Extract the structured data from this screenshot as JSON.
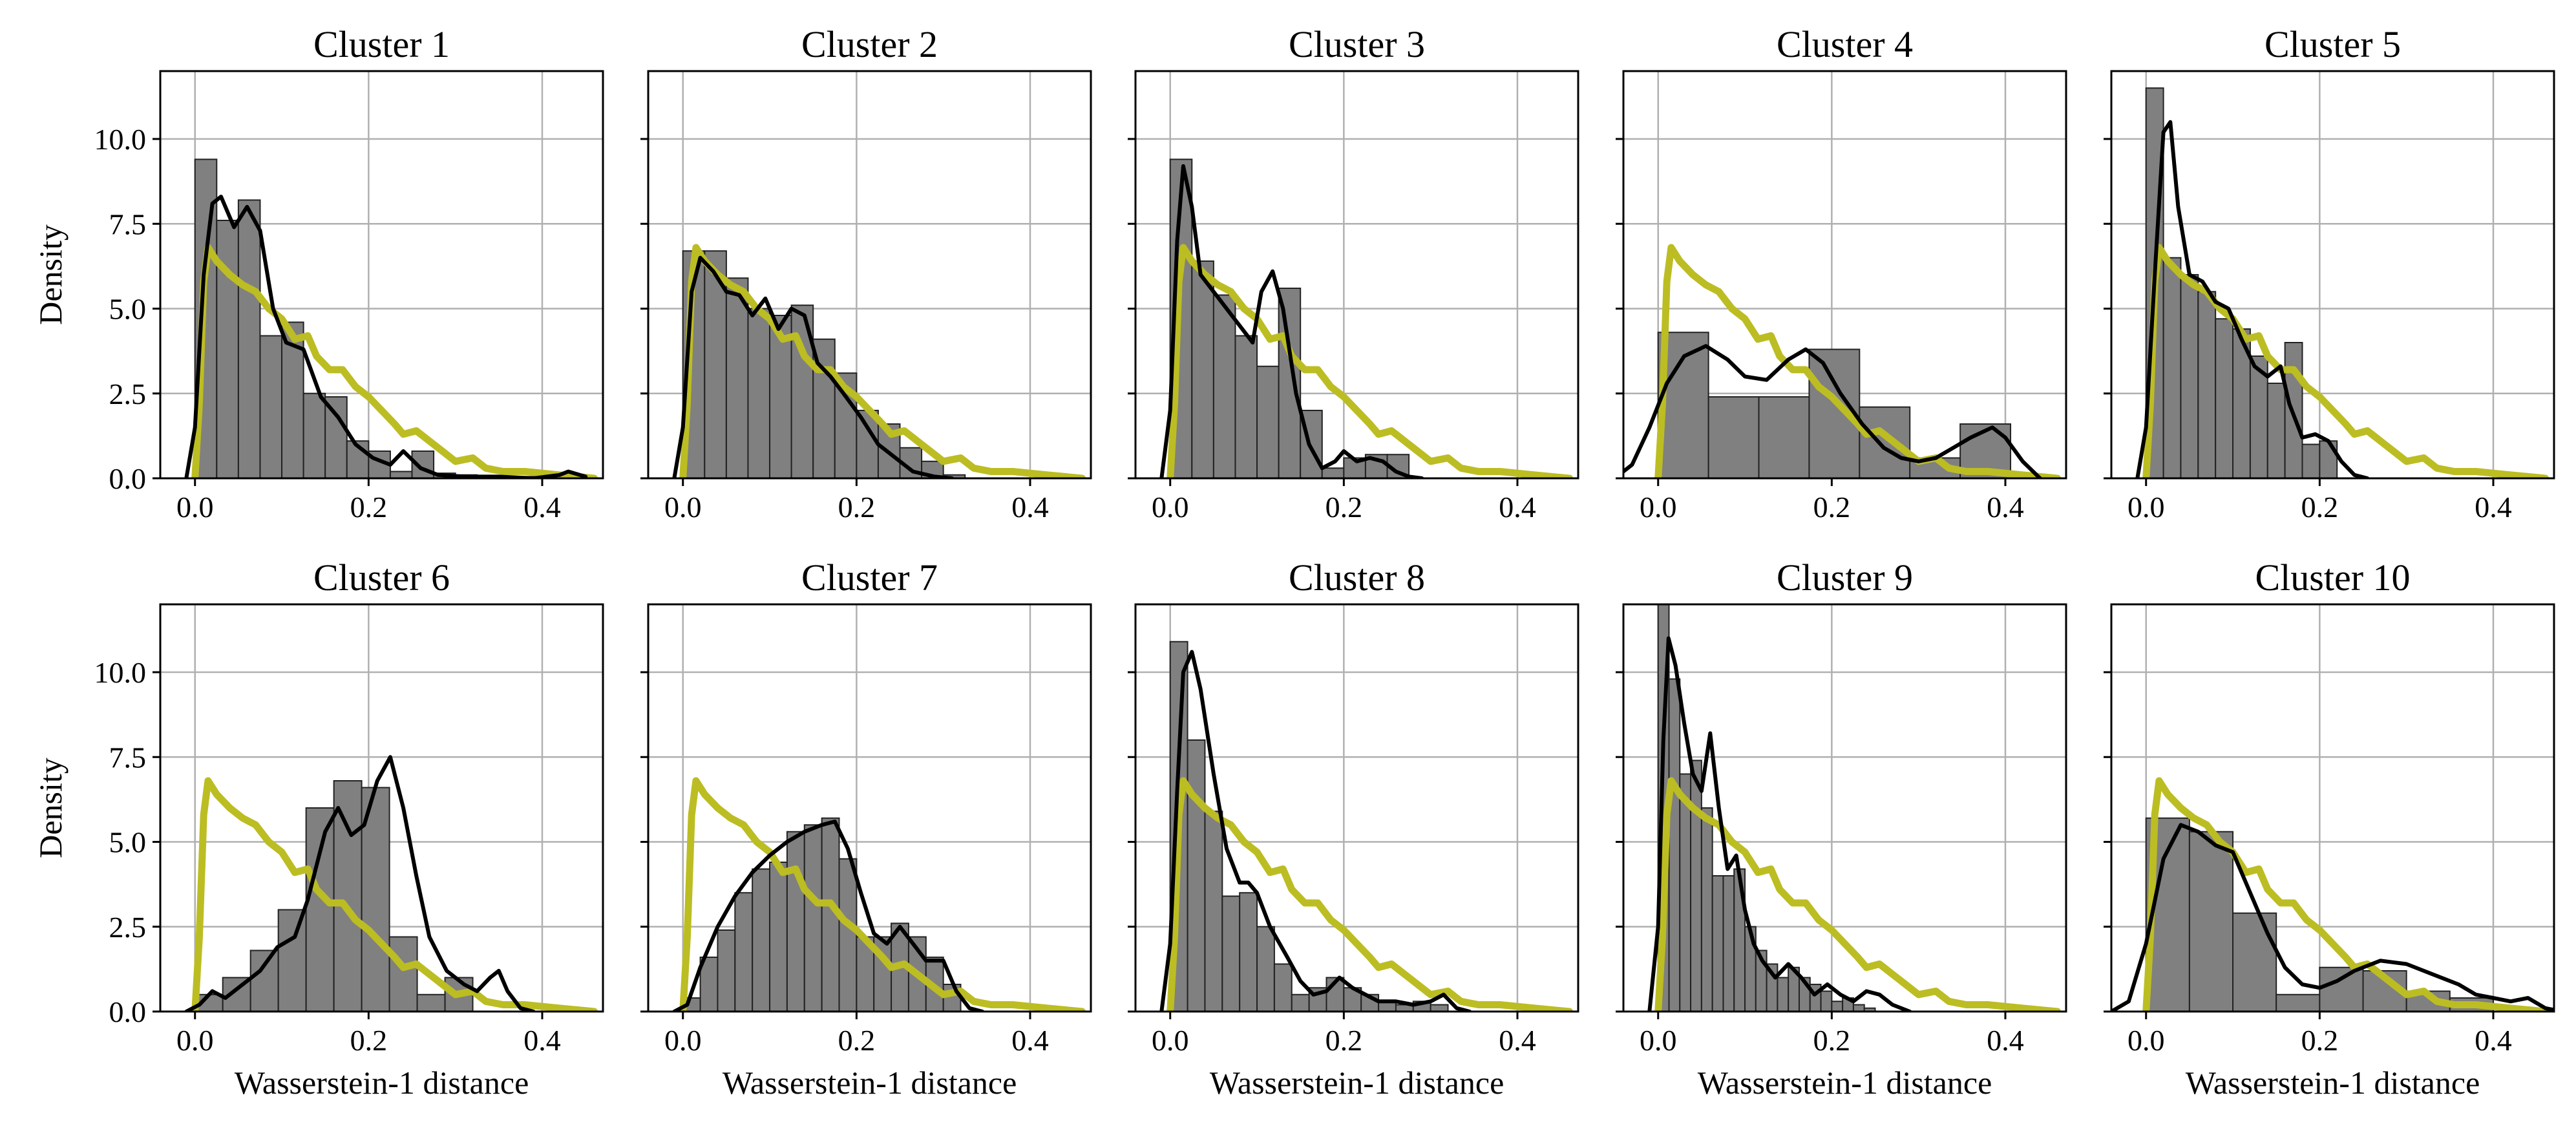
{
  "figure": {
    "ylabel": "Density",
    "xlabel": "Wasserstein-1 distance"
  },
  "chart_data": {
    "type": "histogram+kde",
    "layout": "2 rows x 5 columns, shared y-axis",
    "xlim": [
      -0.04,
      0.47
    ],
    "ylim": [
      0,
      12
    ],
    "yticks": [
      0.0,
      2.5,
      5.0,
      7.5,
      10.0
    ],
    "ytick_labels": [
      "0.0",
      "2.5",
      "5.0",
      "7.5",
      "10.0"
    ],
    "xticks": [
      0.0,
      0.2,
      0.4
    ],
    "xtick_labels": [
      "0.0",
      "0.2",
      "0.4"
    ],
    "grid": true,
    "colors": {
      "histogram_fill": "#808080",
      "histogram_edge": "#222222",
      "cluster_kde": "#000000",
      "reference_kde": "#bcbd22",
      "grid": "#b0b0b0"
    },
    "reference_kde": [
      [
        0.0,
        0.0
      ],
      [
        0.005,
        2.2
      ],
      [
        0.01,
        5.8
      ],
      [
        0.015,
        6.8
      ],
      [
        0.025,
        6.4
      ],
      [
        0.04,
        6.0
      ],
      [
        0.055,
        5.7
      ],
      [
        0.07,
        5.5
      ],
      [
        0.085,
        5.0
      ],
      [
        0.1,
        4.7
      ],
      [
        0.115,
        4.1
      ],
      [
        0.13,
        4.2
      ],
      [
        0.14,
        3.6
      ],
      [
        0.155,
        3.2
      ],
      [
        0.17,
        3.2
      ],
      [
        0.185,
        2.7
      ],
      [
        0.2,
        2.4
      ],
      [
        0.215,
        2.0
      ],
      [
        0.23,
        1.6
      ],
      [
        0.24,
        1.3
      ],
      [
        0.255,
        1.4
      ],
      [
        0.27,
        1.1
      ],
      [
        0.285,
        0.8
      ],
      [
        0.3,
        0.5
      ],
      [
        0.32,
        0.6
      ],
      [
        0.335,
        0.3
      ],
      [
        0.355,
        0.2
      ],
      [
        0.38,
        0.2
      ],
      [
        0.42,
        0.1
      ],
      [
        0.46,
        0.0
      ]
    ],
    "panels": [
      {
        "title": "Cluster 1",
        "bin_start": 0.0,
        "bin_width": 0.025,
        "hist": [
          9.4,
          7.6,
          8.2,
          4.2,
          4.6,
          2.5,
          2.4,
          1.1,
          0.8,
          0.2,
          0.8,
          0.15,
          0.1,
          0.0,
          0.05,
          0.05,
          0.05,
          0.1
        ],
        "kde": [
          [
            -0.01,
            0.0
          ],
          [
            0.0,
            1.5
          ],
          [
            0.01,
            6.0
          ],
          [
            0.02,
            8.1
          ],
          [
            0.03,
            8.3
          ],
          [
            0.045,
            7.4
          ],
          [
            0.06,
            8.0
          ],
          [
            0.075,
            7.3
          ],
          [
            0.09,
            5.0
          ],
          [
            0.105,
            4.0
          ],
          [
            0.125,
            3.8
          ],
          [
            0.145,
            2.4
          ],
          [
            0.165,
            1.8
          ],
          [
            0.185,
            1.0
          ],
          [
            0.205,
            0.6
          ],
          [
            0.225,
            0.4
          ],
          [
            0.24,
            0.8
          ],
          [
            0.26,
            0.3
          ],
          [
            0.28,
            0.1
          ],
          [
            0.31,
            0.05
          ],
          [
            0.35,
            0.05
          ],
          [
            0.39,
            0.0
          ],
          [
            0.42,
            0.1
          ],
          [
            0.43,
            0.2
          ],
          [
            0.45,
            0.05
          ]
        ]
      },
      {
        "title": "Cluster 2",
        "bin_start": 0.0,
        "bin_width": 0.025,
        "hist": [
          6.7,
          6.7,
          5.9,
          5.0,
          4.8,
          5.1,
          4.1,
          3.1,
          2.0,
          1.6,
          0.9,
          0.5,
          0.1
        ],
        "kde": [
          [
            -0.01,
            0.0
          ],
          [
            0.0,
            1.5
          ],
          [
            0.01,
            5.5
          ],
          [
            0.02,
            6.5
          ],
          [
            0.035,
            6.1
          ],
          [
            0.05,
            5.5
          ],
          [
            0.065,
            5.4
          ],
          [
            0.08,
            4.8
          ],
          [
            0.095,
            5.3
          ],
          [
            0.11,
            4.4
          ],
          [
            0.125,
            5.0
          ],
          [
            0.14,
            4.8
          ],
          [
            0.155,
            3.4
          ],
          [
            0.17,
            3.0
          ],
          [
            0.185,
            2.5
          ],
          [
            0.205,
            1.8
          ],
          [
            0.225,
            1.0
          ],
          [
            0.245,
            0.6
          ],
          [
            0.265,
            0.2
          ],
          [
            0.29,
            0.05
          ],
          [
            0.31,
            0.0
          ]
        ]
      },
      {
        "title": "Cluster 3",
        "bin_start": 0.0,
        "bin_width": 0.025,
        "hist": [
          9.4,
          6.4,
          5.4,
          4.2,
          3.3,
          5.6,
          2.0,
          0.3,
          0.6,
          0.7,
          0.7
        ],
        "kde": [
          [
            -0.01,
            0.0
          ],
          [
            0.0,
            2.0
          ],
          [
            0.008,
            7.0
          ],
          [
            0.015,
            9.2
          ],
          [
            0.025,
            8.0
          ],
          [
            0.035,
            6.0
          ],
          [
            0.05,
            5.5
          ],
          [
            0.065,
            5.0
          ],
          [
            0.08,
            4.5
          ],
          [
            0.095,
            4.0
          ],
          [
            0.105,
            5.5
          ],
          [
            0.118,
            6.1
          ],
          [
            0.13,
            5.0
          ],
          [
            0.145,
            2.5
          ],
          [
            0.16,
            1.0
          ],
          [
            0.175,
            0.3
          ],
          [
            0.19,
            0.5
          ],
          [
            0.2,
            0.8
          ],
          [
            0.215,
            0.5
          ],
          [
            0.23,
            0.6
          ],
          [
            0.245,
            0.5
          ],
          [
            0.26,
            0.2
          ],
          [
            0.275,
            0.05
          ],
          [
            0.29,
            0.0
          ]
        ]
      },
      {
        "title": "Cluster 4",
        "bin_start": 0.0,
        "bin_width": 0.058,
        "hist": [
          4.3,
          2.4,
          2.4,
          3.8,
          2.1,
          0.6,
          1.6
        ],
        "kde": [
          [
            -0.05,
            0.0
          ],
          [
            -0.03,
            0.4
          ],
          [
            -0.01,
            1.5
          ],
          [
            0.01,
            2.8
          ],
          [
            0.03,
            3.6
          ],
          [
            0.055,
            3.9
          ],
          [
            0.08,
            3.5
          ],
          [
            0.1,
            3.0
          ],
          [
            0.125,
            2.9
          ],
          [
            0.15,
            3.5
          ],
          [
            0.17,
            3.8
          ],
          [
            0.19,
            3.4
          ],
          [
            0.21,
            2.5
          ],
          [
            0.235,
            1.6
          ],
          [
            0.26,
            0.9
          ],
          [
            0.28,
            0.6
          ],
          [
            0.3,
            0.5
          ],
          [
            0.32,
            0.6
          ],
          [
            0.34,
            0.9
          ],
          [
            0.36,
            1.2
          ],
          [
            0.385,
            1.5
          ],
          [
            0.4,
            1.2
          ],
          [
            0.42,
            0.5
          ],
          [
            0.44,
            0.0
          ]
        ]
      },
      {
        "title": "Cluster 5",
        "bin_start": 0.0,
        "bin_width": 0.02,
        "hist": [
          11.5,
          6.5,
          6.0,
          5.5,
          4.7,
          4.4,
          3.6,
          2.8,
          4.0,
          1.0,
          1.1
        ],
        "kde": [
          [
            -0.01,
            0.0
          ],
          [
            0.0,
            1.5
          ],
          [
            0.01,
            6.0
          ],
          [
            0.02,
            10.2
          ],
          [
            0.028,
            10.5
          ],
          [
            0.037,
            8.0
          ],
          [
            0.05,
            6.0
          ],
          [
            0.065,
            5.8
          ],
          [
            0.08,
            5.2
          ],
          [
            0.095,
            5.0
          ],
          [
            0.11,
            4.1
          ],
          [
            0.125,
            3.3
          ],
          [
            0.14,
            3.0
          ],
          [
            0.155,
            3.3
          ],
          [
            0.165,
            2.2
          ],
          [
            0.18,
            1.2
          ],
          [
            0.195,
            1.3
          ],
          [
            0.21,
            1.1
          ],
          [
            0.225,
            0.5
          ],
          [
            0.24,
            0.1
          ],
          [
            0.255,
            0.0
          ]
        ]
      },
      {
        "title": "Cluster 6",
        "bin_start": 0.0,
        "bin_width": 0.032,
        "hist": [
          0.5,
          1.0,
          1.8,
          3.0,
          6.0,
          6.8,
          6.6,
          2.2,
          0.5,
          1.0
        ],
        "kde": [
          [
            -0.01,
            0.0
          ],
          [
            0.005,
            0.2
          ],
          [
            0.02,
            0.6
          ],
          [
            0.035,
            0.4
          ],
          [
            0.055,
            0.8
          ],
          [
            0.075,
            1.2
          ],
          [
            0.095,
            1.9
          ],
          [
            0.115,
            2.2
          ],
          [
            0.13,
            3.3
          ],
          [
            0.15,
            5.3
          ],
          [
            0.165,
            6.0
          ],
          [
            0.18,
            5.2
          ],
          [
            0.195,
            5.5
          ],
          [
            0.21,
            6.8
          ],
          [
            0.225,
            7.5
          ],
          [
            0.24,
            6.0
          ],
          [
            0.255,
            4.0
          ],
          [
            0.27,
            2.2
          ],
          [
            0.29,
            1.2
          ],
          [
            0.31,
            0.8
          ],
          [
            0.325,
            0.6
          ],
          [
            0.34,
            1.0
          ],
          [
            0.35,
            1.2
          ],
          [
            0.36,
            0.6
          ],
          [
            0.375,
            0.1
          ],
          [
            0.39,
            0.0
          ]
        ]
      },
      {
        "title": "Cluster 7",
        "bin_start": 0.0,
        "bin_width": 0.02,
        "hist": [
          0.4,
          1.6,
          2.4,
          3.5,
          4.2,
          4.4,
          5.3,
          5.5,
          5.7,
          4.5,
          2.2,
          2.2,
          2.6,
          2.2,
          1.6,
          0.8
        ],
        "kde": [
          [
            -0.01,
            0.0
          ],
          [
            0.005,
            0.2
          ],
          [
            0.02,
            1.3
          ],
          [
            0.04,
            2.5
          ],
          [
            0.06,
            3.4
          ],
          [
            0.08,
            4.1
          ],
          [
            0.1,
            4.6
          ],
          [
            0.12,
            5.0
          ],
          [
            0.14,
            5.3
          ],
          [
            0.16,
            5.5
          ],
          [
            0.175,
            5.6
          ],
          [
            0.19,
            4.8
          ],
          [
            0.205,
            3.5
          ],
          [
            0.22,
            2.3
          ],
          [
            0.235,
            2.0
          ],
          [
            0.25,
            2.5
          ],
          [
            0.265,
            2.0
          ],
          [
            0.28,
            1.5
          ],
          [
            0.3,
            1.5
          ],
          [
            0.315,
            0.6
          ],
          [
            0.33,
            0.1
          ],
          [
            0.345,
            0.0
          ]
        ]
      },
      {
        "title": "Cluster 8",
        "bin_start": 0.0,
        "bin_width": 0.02,
        "hist": [
          10.9,
          8.0,
          5.9,
          3.4,
          3.5,
          2.5,
          1.4,
          0.5,
          0.7,
          1.0,
          0.7,
          0.5,
          0.3,
          0.2,
          0.3,
          0.2
        ],
        "kde": [
          [
            -0.01,
            0.0
          ],
          [
            0.0,
            2.0
          ],
          [
            0.008,
            6.5
          ],
          [
            0.015,
            10.0
          ],
          [
            0.025,
            10.6
          ],
          [
            0.035,
            9.5
          ],
          [
            0.05,
            7.0
          ],
          [
            0.065,
            4.8
          ],
          [
            0.08,
            3.8
          ],
          [
            0.09,
            3.8
          ],
          [
            0.1,
            3.5
          ],
          [
            0.115,
            2.5
          ],
          [
            0.135,
            1.6
          ],
          [
            0.15,
            0.9
          ],
          [
            0.165,
            0.5
          ],
          [
            0.18,
            0.6
          ],
          [
            0.195,
            1.0
          ],
          [
            0.21,
            0.7
          ],
          [
            0.225,
            0.5
          ],
          [
            0.24,
            0.3
          ],
          [
            0.26,
            0.3
          ],
          [
            0.28,
            0.2
          ],
          [
            0.3,
            0.3
          ],
          [
            0.315,
            0.5
          ],
          [
            0.33,
            0.1
          ],
          [
            0.345,
            0.0
          ]
        ]
      },
      {
        "title": "Cluster 9",
        "bin_start": 0.0,
        "bin_width": 0.0125,
        "hist": [
          12.0,
          9.8,
          7.0,
          7.4,
          6.0,
          4.0,
          4.0,
          4.2,
          2.5,
          1.8,
          1.4,
          1.0,
          1.3,
          1.0,
          0.8,
          0.6,
          0.3,
          0.4,
          0.2,
          0.1
        ],
        "kde": [
          [
            -0.01,
            0.0
          ],
          [
            0.0,
            2.5
          ],
          [
            0.006,
            8.0
          ],
          [
            0.012,
            11.0
          ],
          [
            0.02,
            10.2
          ],
          [
            0.03,
            8.5
          ],
          [
            0.04,
            7.0
          ],
          [
            0.05,
            6.5
          ],
          [
            0.06,
            8.2
          ],
          [
            0.07,
            6.0
          ],
          [
            0.08,
            4.2
          ],
          [
            0.09,
            4.6
          ],
          [
            0.1,
            3.0
          ],
          [
            0.11,
            2.0
          ],
          [
            0.12,
            1.5
          ],
          [
            0.135,
            1.0
          ],
          [
            0.15,
            1.4
          ],
          [
            0.165,
            1.0
          ],
          [
            0.18,
            0.5
          ],
          [
            0.195,
            0.8
          ],
          [
            0.21,
            0.5
          ],
          [
            0.225,
            0.3
          ],
          [
            0.24,
            0.6
          ],
          [
            0.255,
            0.5
          ],
          [
            0.27,
            0.2
          ],
          [
            0.29,
            0.0
          ]
        ]
      },
      {
        "title": "Cluster 10",
        "bin_start": 0.0,
        "bin_width": 0.05,
        "hist": [
          5.7,
          5.3,
          2.9,
          0.5,
          1.3,
          1.2,
          0.6,
          0.4
        ],
        "kde": [
          [
            -0.04,
            0.0
          ],
          [
            -0.02,
            0.3
          ],
          [
            0.0,
            2.0
          ],
          [
            0.02,
            4.5
          ],
          [
            0.04,
            5.5
          ],
          [
            0.06,
            5.3
          ],
          [
            0.08,
            4.9
          ],
          [
            0.1,
            4.7
          ],
          [
            0.12,
            3.5
          ],
          [
            0.14,
            2.3
          ],
          [
            0.16,
            1.3
          ],
          [
            0.18,
            0.8
          ],
          [
            0.2,
            0.7
          ],
          [
            0.22,
            0.9
          ],
          [
            0.24,
            1.2
          ],
          [
            0.27,
            1.5
          ],
          [
            0.3,
            1.4
          ],
          [
            0.33,
            1.1
          ],
          [
            0.36,
            0.8
          ],
          [
            0.38,
            0.5
          ],
          [
            0.4,
            0.4
          ],
          [
            0.42,
            0.3
          ],
          [
            0.44,
            0.4
          ],
          [
            0.46,
            0.1
          ],
          [
            0.48,
            0.0
          ]
        ]
      }
    ]
  }
}
